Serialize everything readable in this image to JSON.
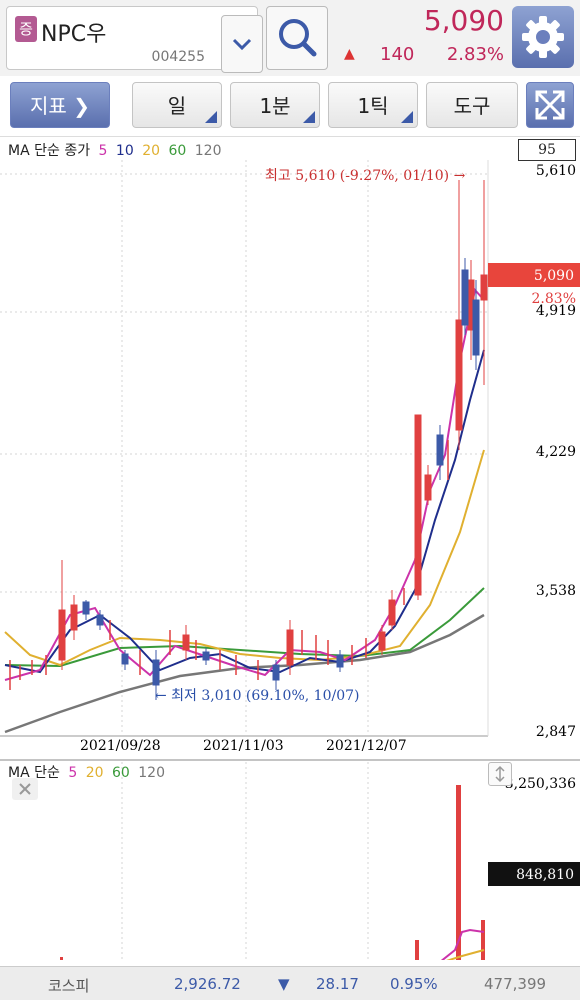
{
  "header": {
    "badge": "증",
    "stock_name": "NPC우",
    "stock_code": "004255",
    "price": "5,090",
    "change_arrow": "▲",
    "change": "140",
    "change_pct": "2.83%"
  },
  "toolbar": {
    "indicator_label": "지표",
    "tabs": [
      {
        "label": "일"
      },
      {
        "label": "1분"
      },
      {
        "label": "1틱"
      },
      {
        "label": "도구"
      }
    ]
  },
  "price_chart": {
    "legend_prefix": "MA 단순 종가",
    "ma_periods": [
      {
        "label": "5",
        "color": "#cc33aa"
      },
      {
        "label": "10",
        "color": "#1f2e8c"
      },
      {
        "label": "20",
        "color": "#e0b030"
      },
      {
        "label": "60",
        "color": "#3a9a3a"
      },
      {
        "label": "120",
        "color": "#777777"
      }
    ],
    "visible_count": "95",
    "axis_labels": [
      "5,610",
      "4,919",
      "4,229",
      "3,538",
      "2,847"
    ],
    "date_labels": [
      "2021/09/28",
      "2021/11/03",
      "2021/12/07"
    ],
    "current_price_tag": "5,090",
    "current_pct_tag": "2.83%",
    "high_annotation": "최고 5,610 (-9.27%, 01/10) →",
    "low_annotation": "← 최저 3,010 (69.10%, 10/07)"
  },
  "volume_chart": {
    "legend_prefix": "MA 단순",
    "ma_periods": [
      {
        "label": "5",
        "color": "#cc33aa"
      },
      {
        "label": "20",
        "color": "#e0b030"
      },
      {
        "label": "60",
        "color": "#3a9a3a"
      },
      {
        "label": "120",
        "color": "#777777"
      }
    ],
    "max_label": "3,250,336",
    "current_volume_tag": "848,810"
  },
  "status_bar": {
    "market": "코스피",
    "index_value": "2,926.72",
    "arrow": "▼",
    "index_change": "28.17",
    "index_pct": "0.95%",
    "volume": "477,399"
  },
  "colors": {
    "up": "#c0275a",
    "down": "#3c5aa8",
    "accent": "#6b7fbd"
  }
}
